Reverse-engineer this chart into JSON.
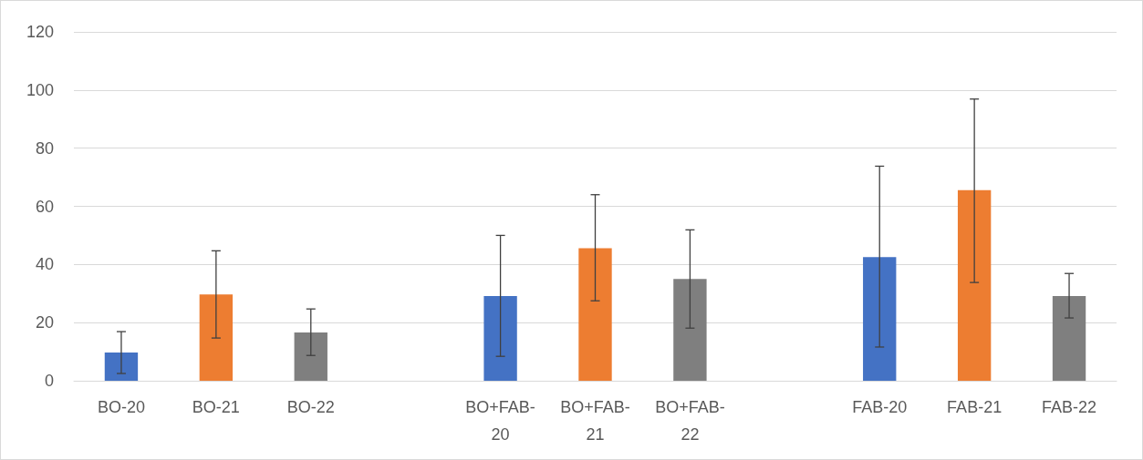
{
  "chart_data": {
    "type": "bar",
    "categories": [
      "BO-20",
      "BO-21",
      "BO-22",
      null,
      "BO+FAB-20",
      "BO+FAB-21",
      "BO+FAB-22",
      null,
      "FAB-20",
      "FAB-21",
      "FAB-22"
    ],
    "values": [
      9.7,
      29.7,
      16.6,
      null,
      29.1,
      45.6,
      35,
      null,
      42.5,
      65.6,
      29.1
    ],
    "colors": [
      "#4472c4",
      "#ed7d31",
      "#7f7f7f",
      null,
      "#4472c4",
      "#ed7d31",
      "#7f7f7f",
      null,
      "#4472c4",
      "#ed7d31",
      "#7f7f7f"
    ],
    "errors": [
      [
        2.5,
        16.9
      ],
      [
        14.7,
        44.7
      ],
      [
        8.7,
        24.7
      ],
      null,
      [
        8.4,
        50
      ],
      [
        27.5,
        64
      ],
      [
        18.1,
        51.9
      ],
      null,
      [
        11.6,
        73.8
      ],
      [
        33.8,
        96.9
      ],
      [
        21.6,
        36.9
      ]
    ],
    "ylim": [
      0,
      120
    ],
    "yticks": [
      0,
      20,
      40,
      60,
      80,
      100,
      120
    ],
    "grid": "y"
  }
}
